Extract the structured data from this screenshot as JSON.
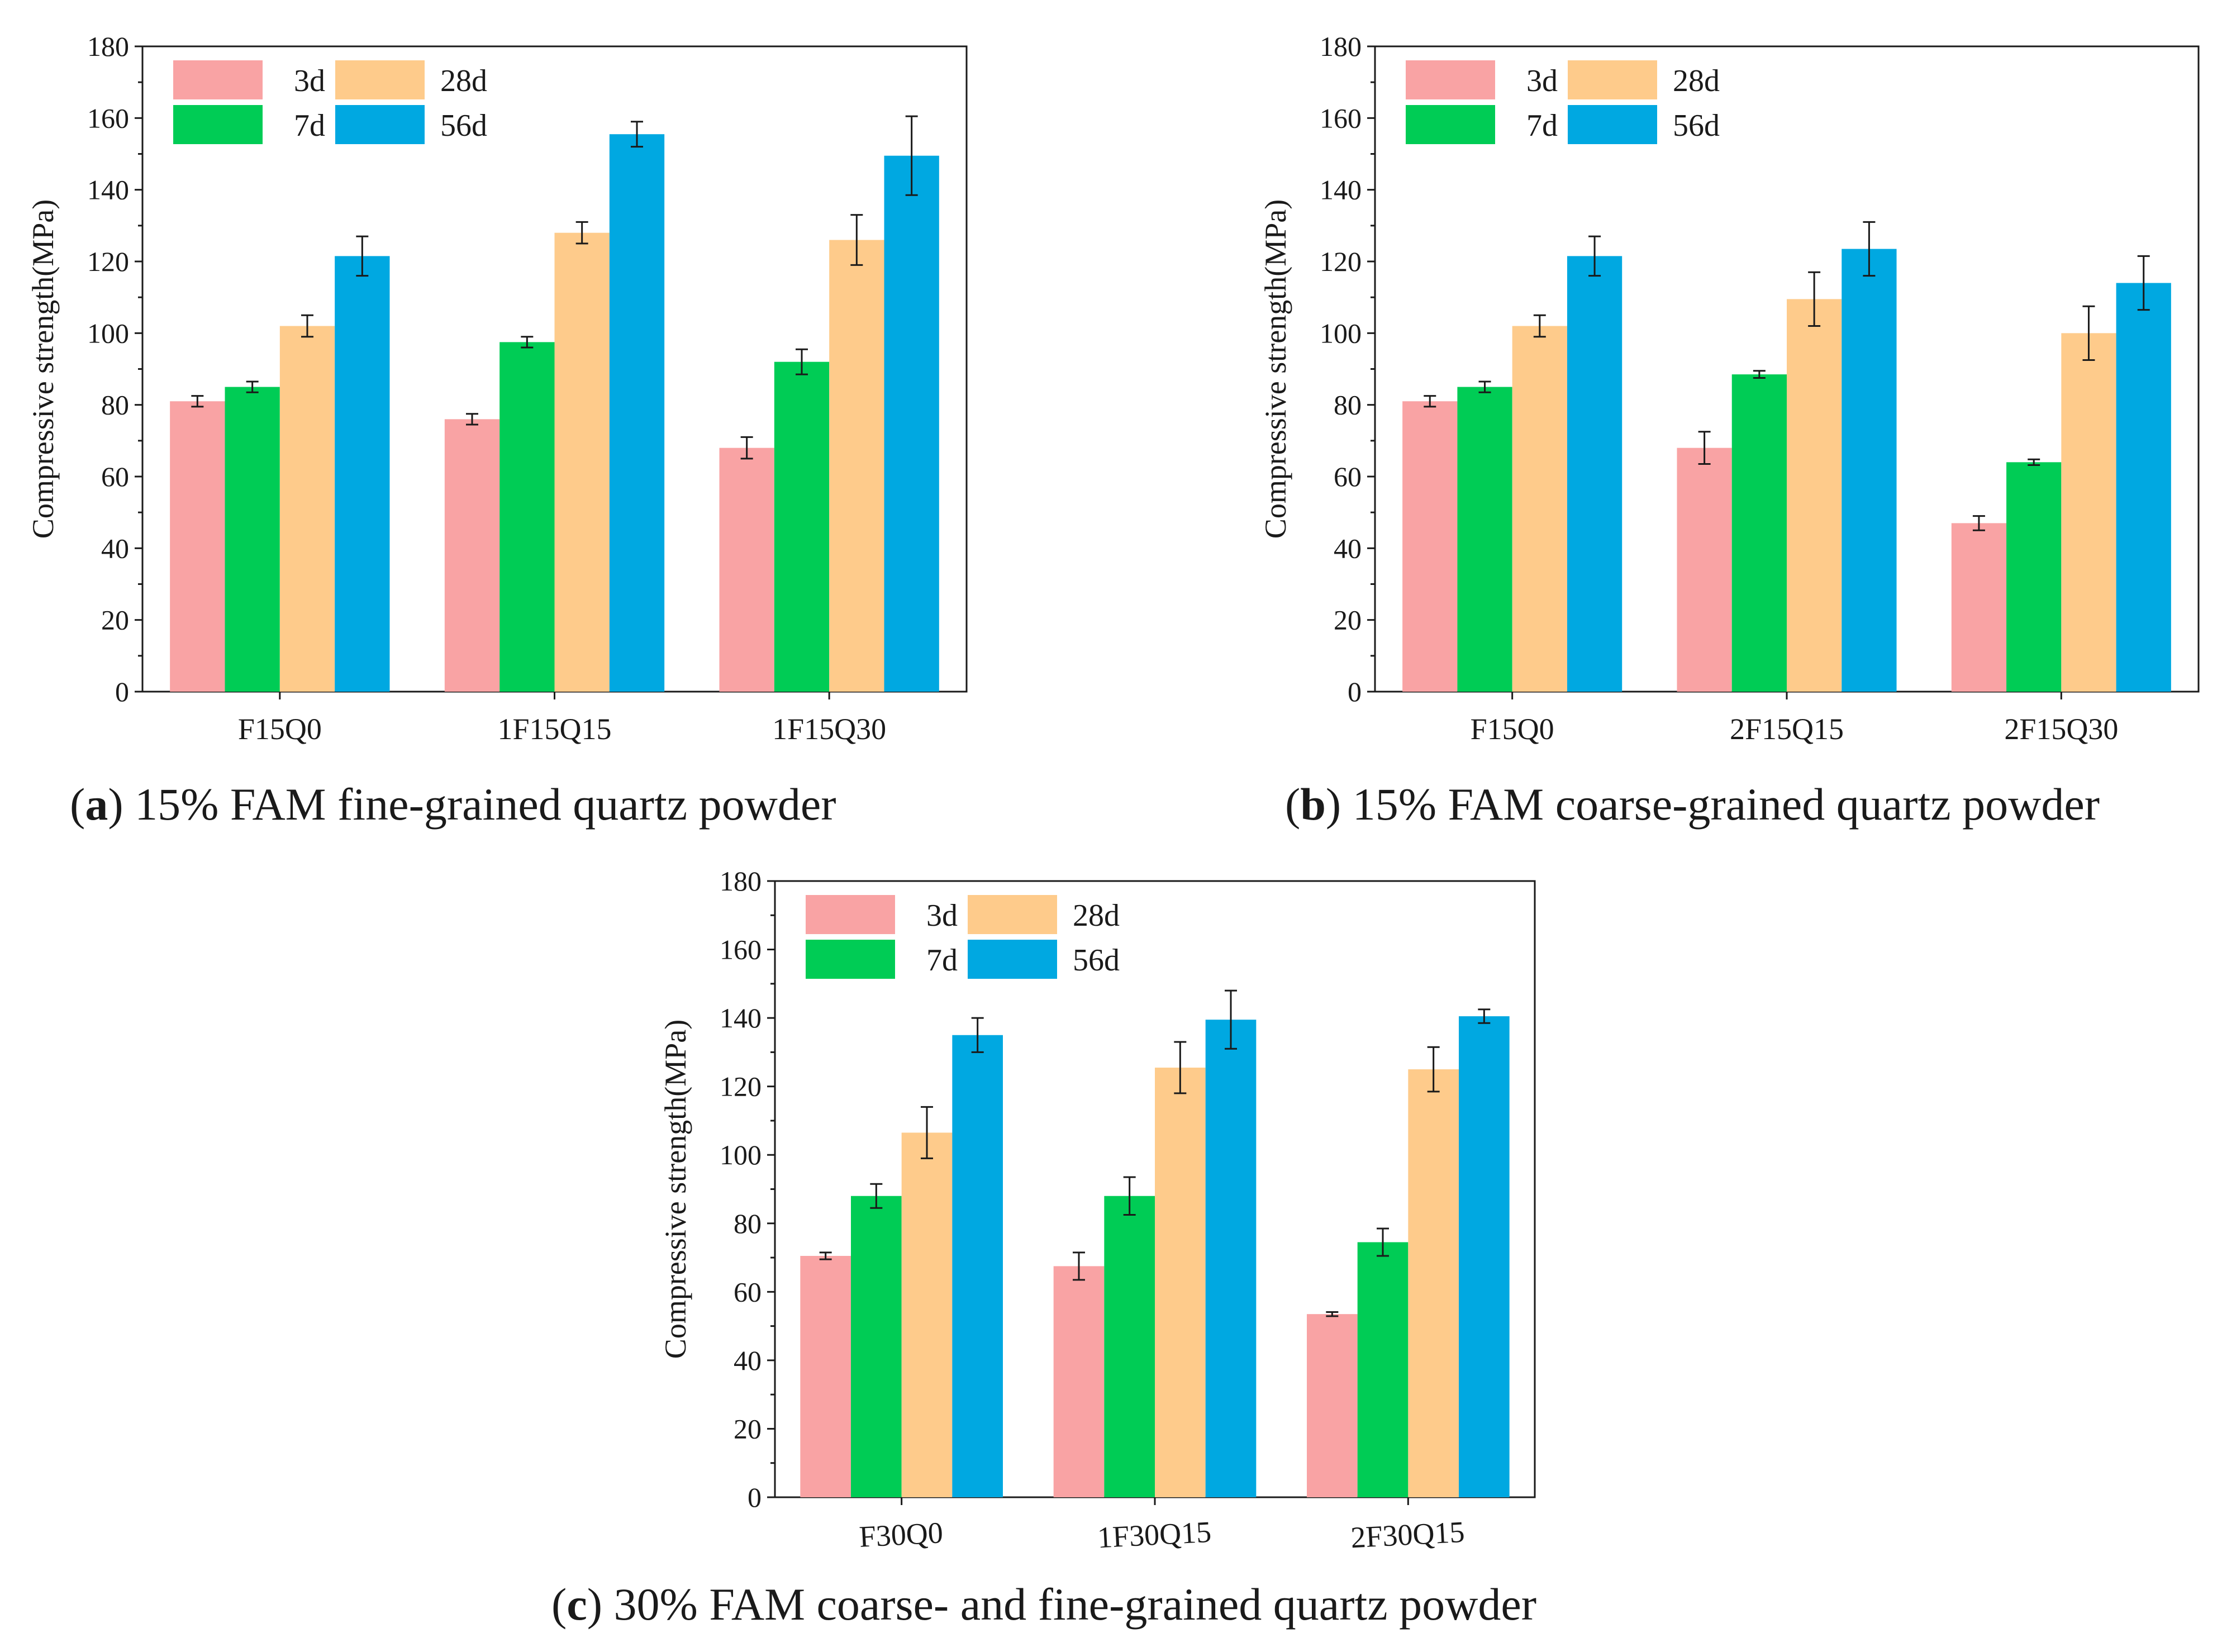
{
  "series_colors": {
    "3d": "#F9A3A4",
    "7d": "#00CC55",
    "28d": "#FECB8B",
    "56d": "#00A8E1"
  },
  "chart_data": [
    {
      "type": "bar",
      "panel_letter": "a",
      "caption": " 15% FAM fine-grained quartz powder",
      "ylabel": "Compressive strength(MPa)",
      "xlabel": "",
      "ylim": [
        0,
        180
      ],
      "yticks": [
        "0",
        "20",
        "40",
        "60",
        "80",
        "100",
        "120",
        "140",
        "160",
        "180"
      ],
      "categories": [
        "F15Q0",
        "1F15Q15",
        "1F15Q30"
      ],
      "series": [
        {
          "name": "3d",
          "values": [
            81,
            76,
            68
          ],
          "errors": [
            1.5,
            1.5,
            3
          ]
        },
        {
          "name": "7d",
          "values": [
            85,
            97.5,
            92
          ],
          "errors": [
            1.5,
            1.5,
            3.5
          ]
        },
        {
          "name": "28d",
          "values": [
            102,
            128,
            126
          ],
          "errors": [
            3,
            3,
            7
          ]
        },
        {
          "name": "56d",
          "values": [
            121.5,
            155.5,
            149.5
          ],
          "errors": [
            5.5,
            3.5,
            11
          ]
        }
      ]
    },
    {
      "type": "bar",
      "panel_letter": "b",
      "caption": " 15% FAM coarse-grained quartz powder",
      "ylabel": "Compressive strength(MPa)",
      "xlabel": "",
      "ylim": [
        0,
        180
      ],
      "yticks": [
        "0",
        "20",
        "40",
        "60",
        "80",
        "100",
        "120",
        "140",
        "160",
        "180"
      ],
      "categories": [
        "F15Q0",
        "2F15Q15",
        "2F15Q30"
      ],
      "series": [
        {
          "name": "3d",
          "values": [
            81,
            68,
            47
          ],
          "errors": [
            1.5,
            4.5,
            2
          ]
        },
        {
          "name": "7d",
          "values": [
            85,
            88.5,
            64
          ],
          "errors": [
            1.5,
            1,
            0.8
          ]
        },
        {
          "name": "28d",
          "values": [
            102,
            109.5,
            100
          ],
          "errors": [
            3,
            7.5,
            7.5
          ]
        },
        {
          "name": "56d",
          "values": [
            121.5,
            123.5,
            114
          ],
          "errors": [
            5.5,
            7.5,
            7.5
          ]
        }
      ]
    },
    {
      "type": "bar",
      "panel_letter": "c",
      "caption": " 30% FAM coarse- and fine-grained quartz powder",
      "ylabel": "Compressive strength(MPa)",
      "xlabel": "",
      "ylim": [
        0,
        180
      ],
      "yticks": [
        "0",
        "20",
        "40",
        "60",
        "80",
        "100",
        "120",
        "140",
        "160",
        "180"
      ],
      "categories": [
        "F30Q0",
        "1F30Q15",
        "2F30Q15"
      ],
      "series": [
        {
          "name": "3d",
          "values": [
            70.5,
            67.5,
            53.5
          ],
          "errors": [
            1,
            4,
            0.6
          ]
        },
        {
          "name": "7d",
          "values": [
            88,
            88,
            74.5
          ],
          "errors": [
            3.5,
            5.5,
            4
          ]
        },
        {
          "name": "28d",
          "values": [
            106.5,
            125.5,
            125
          ],
          "errors": [
            7.5,
            7.5,
            6.5
          ]
        },
        {
          "name": "56d",
          "values": [
            135,
            139.5,
            140.5
          ],
          "errors": [
            5,
            8.5,
            2
          ]
        }
      ]
    }
  ]
}
